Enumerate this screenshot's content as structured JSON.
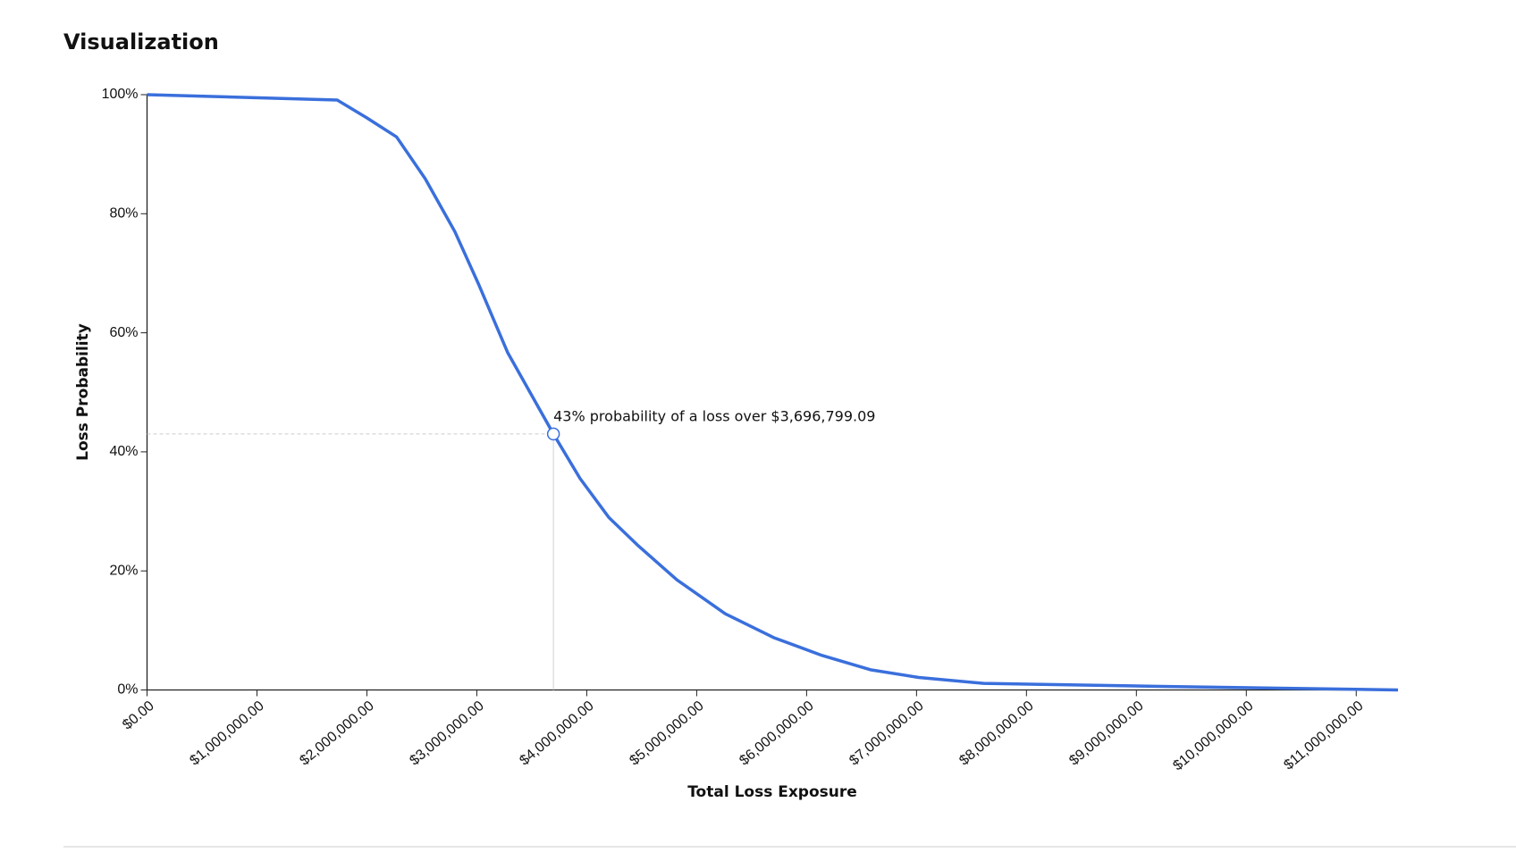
{
  "header": {
    "title": "Visualization"
  },
  "chart_data": {
    "type": "line",
    "xlabel": "Total Loss Exposure",
    "ylabel": "Loss Probability",
    "x": [
      0,
      1730000,
      2000000,
      2270000,
      2530000,
      2800000,
      3020000,
      3280000,
      3696799.09,
      3940000,
      4200000,
      4470000,
      4820000,
      5260000,
      5700000,
      6140000,
      6580000,
      7020000,
      7610000,
      9220000,
      11380000
    ],
    "series": [
      {
        "name": "Loss Probability",
        "color": "#3a6fdc",
        "values": [
          100,
          99.1,
          96.1,
          92.9,
          85.9,
          77,
          68,
          56.7,
          43,
          35.5,
          29,
          24.2,
          18.5,
          12.8,
          8.8,
          5.8,
          3.4,
          2.1,
          1.1,
          0.6,
          0
        ]
      }
    ],
    "xlim": [
      0,
      11380000
    ],
    "ylim": [
      0,
      100
    ],
    "xticks": [
      {
        "value": 0,
        "label": "$0.00"
      },
      {
        "value": 1000000,
        "label": "$1,000,000.00"
      },
      {
        "value": 2000000,
        "label": "$2,000,000.00"
      },
      {
        "value": 3000000,
        "label": "$3,000,000.00"
      },
      {
        "value": 4000000,
        "label": "$4,000,000.00"
      },
      {
        "value": 5000000,
        "label": "$5,000,000.00"
      },
      {
        "value": 6000000,
        "label": "$6,000,000.00"
      },
      {
        "value": 7000000,
        "label": "$7,000,000.00"
      },
      {
        "value": 8000000,
        "label": "$8,000,000.00"
      },
      {
        "value": 9000000,
        "label": "$9,000,000.00"
      },
      {
        "value": 10000000,
        "label": "$10,000,000.00"
      },
      {
        "value": 11000000,
        "label": "$11,000,000.00"
      }
    ],
    "yticks": [
      {
        "value": 0,
        "label": "0%"
      },
      {
        "value": 20,
        "label": "20%"
      },
      {
        "value": 40,
        "label": "40%"
      },
      {
        "value": 60,
        "label": "60%"
      },
      {
        "value": 80,
        "label": "80%"
      },
      {
        "value": 100,
        "label": "100%"
      }
    ],
    "annotation": {
      "text": "43% probability of a loss over $3,696,799.09",
      "x": 3696799.09,
      "y": 43
    }
  }
}
